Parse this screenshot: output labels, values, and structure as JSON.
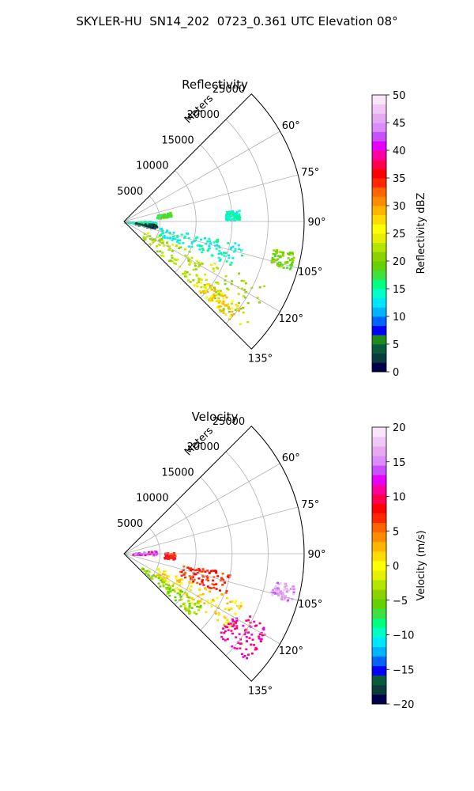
{
  "title": "SKYLER-HU  SN14_202  0723_0.361 UTC Elevation 08°",
  "chart_data": [
    {
      "type": "polar-sector",
      "title": "Reflectivity",
      "radial_label": "Meters",
      "radial_ticks": [
        5000,
        10000,
        15000,
        20000,
        25000
      ],
      "r_max": 25000,
      "azimuth_range": [
        45,
        135
      ],
      "azimuth_ticks": [
        "60°",
        "75°",
        "90°",
        "105°",
        "120°",
        "135°"
      ],
      "colorbar": {
        "label": "Reflectivity dBZ",
        "min": 0,
        "max": 50,
        "ticks": [
          "0",
          "5",
          "10",
          "15",
          "20",
          "25",
          "30",
          "35",
          "40",
          "45",
          "50"
        ],
        "colors": [
          "#00004c",
          "#0a3c3c",
          "#0a5a3c",
          "#1e8c1e",
          "#0000ff",
          "#0064ff",
          "#00b4ff",
          "#00e6ff",
          "#00ffc8",
          "#00ff80",
          "#40e040",
          "#64d200",
          "#8cd200",
          "#b4e600",
          "#e6f000",
          "#ffff00",
          "#ffdc00",
          "#ffb400",
          "#ff8c00",
          "#ff6400",
          "#ff2800",
          "#ff0000",
          "#ff0050",
          "#ff00a0",
          "#e600ff",
          "#c850ff",
          "#dc8cff",
          "#e6aaf0",
          "#f0c8f5",
          "#fae6fa"
        ]
      },
      "echo_regions": [
        {
          "az": [
            114,
            133
          ],
          "r": [
            3000,
            22000
          ],
          "value": 22
        },
        {
          "az": [
            100,
            112
          ],
          "r": [
            5000,
            17000
          ],
          "value": 14
        },
        {
          "az": [
            126,
            133
          ],
          "r": [
            13000,
            20000
          ],
          "value": 28
        },
        {
          "az": [
            88,
            100
          ],
          "r": [
            0,
            4500
          ],
          "value": 15
        },
        {
          "az": [
            94,
            103
          ],
          "r": [
            1500,
            4500
          ],
          "value": 3
        },
        {
          "az": [
            100,
            106
          ],
          "r": [
            21000,
            24000
          ],
          "value": 20
        },
        {
          "az": [
            84,
            89
          ],
          "r": [
            14000,
            16000
          ],
          "value": 14
        },
        {
          "az": [
            78,
            84
          ],
          "r": [
            4500,
            6500
          ],
          "value": 18
        }
      ]
    },
    {
      "type": "polar-sector",
      "title": "Velocity",
      "radial_label": "Meters",
      "radial_ticks": [
        5000,
        10000,
        15000,
        20000,
        25000
      ],
      "r_max": 25000,
      "azimuth_range": [
        45,
        135
      ],
      "azimuth_ticks": [
        "60°",
        "75°",
        "90°",
        "105°",
        "120°",
        "135°"
      ],
      "colorbar": {
        "label": "Velocity (m/s)",
        "min": -20,
        "max": 20,
        "ticks": [
          "−20",
          "−15",
          "−10",
          "−5",
          "0",
          "5",
          "10",
          "15",
          "20"
        ],
        "colors": [
          "#00004c",
          "#0a3c3c",
          "#0a5a3c",
          "#0000ff",
          "#0064ff",
          "#00b4ff",
          "#00e6ff",
          "#00ffc8",
          "#00ff80",
          "#40e040",
          "#64d200",
          "#8cd200",
          "#b4e600",
          "#e6f000",
          "#ffff00",
          "#ffdc00",
          "#ffb400",
          "#ff8c00",
          "#ff6400",
          "#ff2800",
          "#ff0000",
          "#ff0050",
          "#ff00a0",
          "#e600ff",
          "#c850ff",
          "#dc8cff",
          "#e6aaf0",
          "#f0c8f5",
          "#fae6fa"
        ]
      },
      "echo_regions": [
        {
          "az": [
            112,
            126
          ],
          "r": [
            5000,
            18000
          ],
          "value": 1
        },
        {
          "az": [
            122,
            133
          ],
          "r": [
            3000,
            13000
          ],
          "value": -4
        },
        {
          "az": [
            116,
            131
          ],
          "r": [
            17000,
            22500
          ],
          "value": 11
        },
        {
          "az": [
            84,
            92
          ],
          "r": [
            1000,
            4500
          ],
          "value": 13
        },
        {
          "az": [
            100,
            112
          ],
          "r": [
            8000,
            15000
          ],
          "value": 7
        },
        {
          "az": [
            100,
            106
          ],
          "r": [
            21000,
            24000
          ],
          "value": 16
        },
        {
          "az": [
            88,
            96
          ],
          "r": [
            5500,
            7000
          ],
          "value": 8
        }
      ]
    }
  ]
}
